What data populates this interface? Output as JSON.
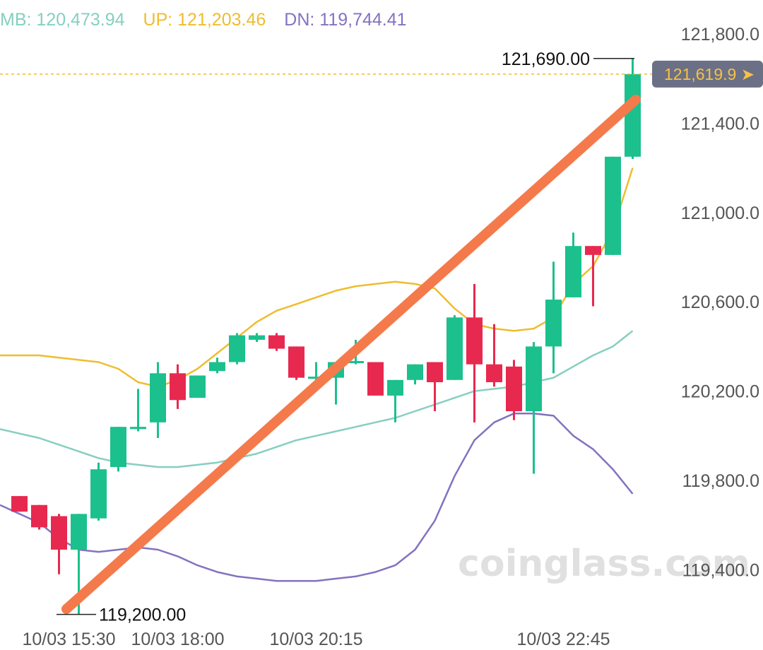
{
  "legend": {
    "mb": "MB: 120,473.94",
    "up": "UP: 121,203.46",
    "dn": "DN: 119,744.41"
  },
  "price_tag": {
    "label": "121,619.9 ➤",
    "value": 121619.9
  },
  "high_label": "121,690.00",
  "low_label": "119,200.00",
  "watermark": "coinglass.com",
  "colors": {
    "up": "#1bc08d",
    "down": "#e8294f",
    "mb": "#86cfc0",
    "upper": "#eebd2f",
    "lower": "#8472c0",
    "trend": "#f47a4c",
    "tag_bg": "#6c7086",
    "tag_text": "#f5c244",
    "axis_text": "#555555"
  },
  "chart_data": {
    "type": "candlestick",
    "y_ticks": [
      "121,800.0",
      "121,400.0",
      "121,000.0",
      "120,600.0",
      "120,200.0",
      "119,800.0",
      "119,400.0"
    ],
    "y_tick_values": [
      121800,
      121400,
      121000,
      120600,
      120200,
      119800,
      119400
    ],
    "x_labels": [
      "10/03 15:30",
      "10/03 18:00",
      "10/03 20:15",
      "10/03 22:45"
    ],
    "x_label_candles": [
      2.5,
      8,
      15,
      27.5
    ],
    "candles": [
      {
        "o": 119730,
        "h": 119730,
        "l": 119660,
        "c": 119660
      },
      {
        "o": 119690,
        "h": 119690,
        "l": 119580,
        "c": 119590
      },
      {
        "o": 119640,
        "h": 119650,
        "l": 119380,
        "c": 119490
      },
      {
        "o": 119490,
        "h": 119650,
        "l": 119200,
        "c": 119650
      },
      {
        "o": 119630,
        "h": 119880,
        "l": 119620,
        "c": 119850
      },
      {
        "o": 119860,
        "h": 120040,
        "l": 119840,
        "c": 120040
      },
      {
        "o": 120030,
        "h": 120210,
        "l": 120020,
        "c": 120040
      },
      {
        "o": 120060,
        "h": 120330,
        "l": 119990,
        "c": 120280
      },
      {
        "o": 120280,
        "h": 120320,
        "l": 120120,
        "c": 120160
      },
      {
        "o": 120170,
        "h": 120270,
        "l": 120170,
        "c": 120270
      },
      {
        "o": 120290,
        "h": 120350,
        "l": 120280,
        "c": 120330
      },
      {
        "o": 120330,
        "h": 120460,
        "l": 120320,
        "c": 120450
      },
      {
        "o": 120430,
        "h": 120460,
        "l": 120420,
        "c": 120450
      },
      {
        "o": 120450,
        "h": 120460,
        "l": 120380,
        "c": 120390
      },
      {
        "o": 120400,
        "h": 120400,
        "l": 120250,
        "c": 120260
      },
      {
        "o": 120260,
        "h": 120330,
        "l": 120200,
        "c": 120260
      },
      {
        "o": 120260,
        "h": 120330,
        "l": 120140,
        "c": 120330
      },
      {
        "o": 120330,
        "h": 120430,
        "l": 120320,
        "c": 120330
      },
      {
        "o": 120330,
        "h": 120330,
        "l": 120180,
        "c": 120180
      },
      {
        "o": 120180,
        "h": 120250,
        "l": 120060,
        "c": 120250
      },
      {
        "o": 120250,
        "h": 120320,
        "l": 120230,
        "c": 120320
      },
      {
        "o": 120330,
        "h": 120330,
        "l": 120110,
        "c": 120240
      },
      {
        "o": 120250,
        "h": 120540,
        "l": 120250,
        "c": 120530
      },
      {
        "o": 120530,
        "h": 120680,
        "l": 120060,
        "c": 120320
      },
      {
        "o": 120320,
        "h": 120500,
        "l": 120220,
        "c": 120240
      },
      {
        "o": 120310,
        "h": 120340,
        "l": 120070,
        "c": 120110
      },
      {
        "o": 120110,
        "h": 120420,
        "l": 119830,
        "c": 120400
      },
      {
        "o": 120400,
        "h": 120780,
        "l": 120280,
        "c": 120610
      },
      {
        "o": 120620,
        "h": 120910,
        "l": 120620,
        "c": 120850
      },
      {
        "o": 120850,
        "h": 120850,
        "l": 120580,
        "c": 120810
      },
      {
        "o": 120810,
        "h": 121250,
        "l": 120810,
        "c": 121250
      },
      {
        "o": 121250,
        "h": 121690,
        "l": 121240,
        "c": 121619.9
      }
    ],
    "series": [
      {
        "name": "MB",
        "values": [
          120030,
          119990,
          119960,
          119930,
          119900,
          119880,
          119870,
          119860,
          119860,
          119870,
          119880,
          119900,
          119920,
          119950,
          119980,
          120000,
          120020,
          120040,
          120060,
          120080,
          120110,
          120140,
          120170,
          120200,
          120210,
          120220,
          120240,
          120260,
          120310,
          120360,
          120400,
          120470
        ]
      },
      {
        "name": "UP",
        "values": [
          120360,
          120360,
          120350,
          120340,
          120330,
          120300,
          120240,
          120220,
          120250,
          120300,
          120370,
          120440,
          120510,
          120560,
          120590,
          120620,
          120650,
          120670,
          120680,
          120690,
          120680,
          120660,
          120570,
          120500,
          120480,
          120470,
          120480,
          120530,
          120680,
          120760,
          120920,
          121200
        ]
      },
      {
        "name": "DN",
        "values": [
          119690,
          119610,
          119540,
          119490,
          119480,
          119490,
          119500,
          119490,
          119460,
          119420,
          119390,
          119370,
          119360,
          119350,
          119350,
          119350,
          119360,
          119370,
          119390,
          119420,
          119490,
          119620,
          119820,
          119980,
          120060,
          120100,
          120100,
          120090,
          120000,
          119940,
          119850,
          119740
        ]
      }
    ]
  }
}
